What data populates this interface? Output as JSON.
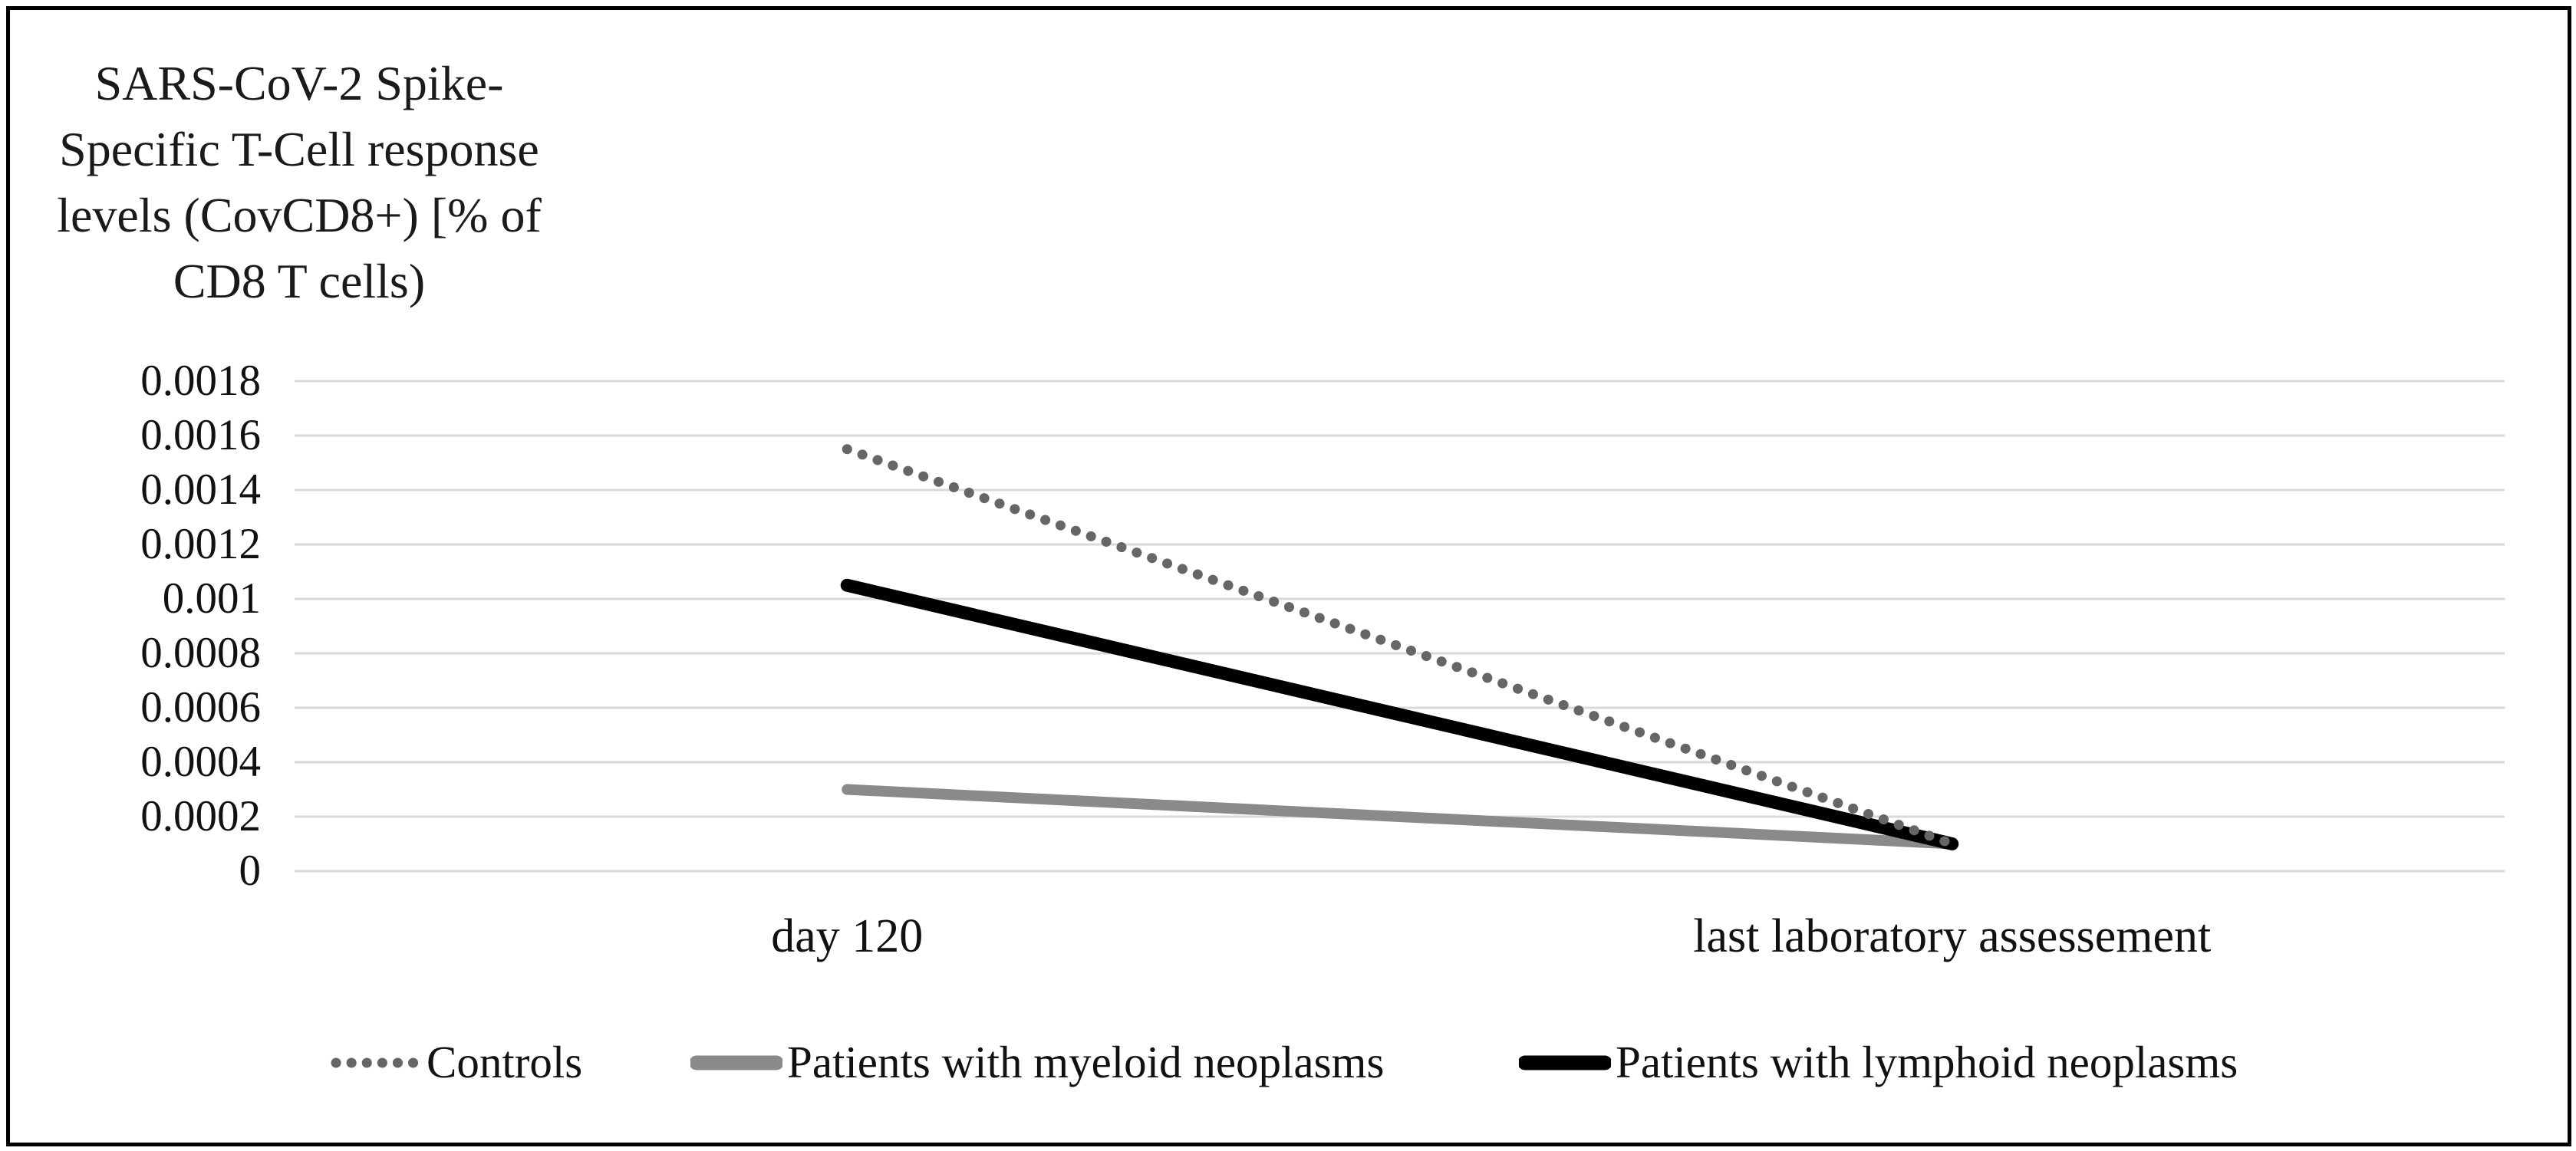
{
  "figure": {
    "y_axis_title": "SARS-CoV-2 Spike-Specific T-Cell response levels (CovCD8+) [% of CD8 T cells)",
    "y_axis_title_lines": [
      "SARS-CoV-2 Spike-",
      "Specific T-Cell response",
      "levels (CovCD8+) [% of",
      "CD8 T cells)"
    ],
    "border_color": "#000000",
    "background_color": "#ffffff"
  },
  "chart_data": {
    "type": "line",
    "categories": [
      "day 120",
      "last laboratory assessement"
    ],
    "series": [
      {
        "name": "Controls",
        "values": [
          0.00155,
          0.0001
        ],
        "style": "dotted",
        "color": "#666666"
      },
      {
        "name": "Patients with myeloid neoplasms",
        "values": [
          0.0003,
          0.0001
        ],
        "style": "solid",
        "color": "#8a8a8a"
      },
      {
        "name": "Patients with lymphoid neoplasms",
        "values": [
          0.00105,
          0.0001
        ],
        "style": "solid",
        "color": "#000000"
      }
    ],
    "y_axis": {
      "min": 0,
      "max": 0.0018,
      "step": 0.0002,
      "tick_labels": [
        "0.0018",
        "0.0016",
        "0.0014",
        "0.0012",
        "0.001",
        "0.0008",
        "0.0006",
        "0.0004",
        "0.0002",
        "0"
      ]
    },
    "grid": true,
    "gridline_color": "#d9d9d9",
    "legend_position": "bottom"
  }
}
